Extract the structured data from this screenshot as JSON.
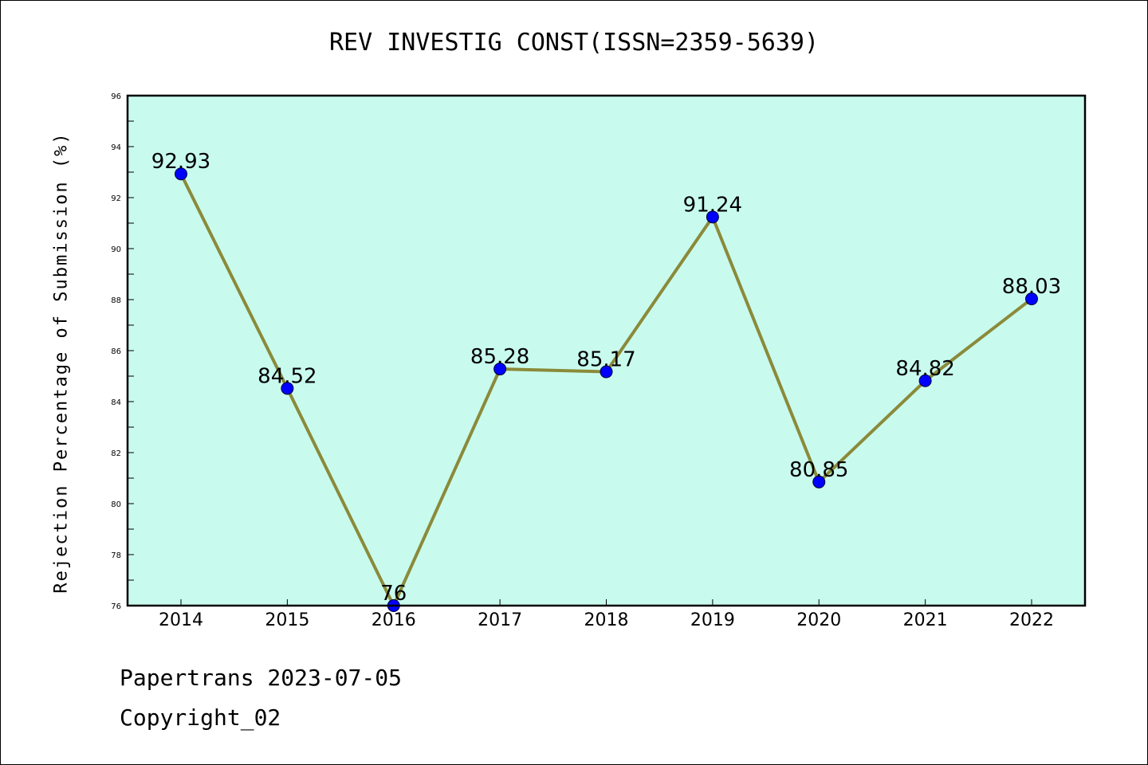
{
  "chart_data": {
    "type": "line",
    "title": "REV INVESTIG CONST(ISSN=2359-5639)",
    "xlabel": "",
    "ylabel": "Rejection Percentage of Submission (%)",
    "categories": [
      "2014",
      "2015",
      "2016",
      "2017",
      "2018",
      "2019",
      "2020",
      "2021",
      "2022"
    ],
    "values": [
      92.93,
      84.52,
      76,
      85.28,
      85.17,
      91.24,
      80.85,
      84.82,
      88.03
    ],
    "data_labels": [
      "92.93",
      "84.52",
      "76",
      "85.28",
      "85.17",
      "91.24",
      "80.85",
      "84.82",
      "88.03"
    ],
    "ylim": [
      76,
      96
    ],
    "y_ticks": [
      "76",
      "78",
      "80",
      "82",
      "84",
      "86",
      "88",
      "90",
      "92",
      "94",
      "96"
    ],
    "grid": false,
    "colors": {
      "plot_background": "#c8fbee",
      "line": "#8b8a3a",
      "marker": "#0000ff"
    }
  },
  "footer": {
    "line1": "Papertrans 2023-07-05",
    "line2": "Copyright_02"
  }
}
